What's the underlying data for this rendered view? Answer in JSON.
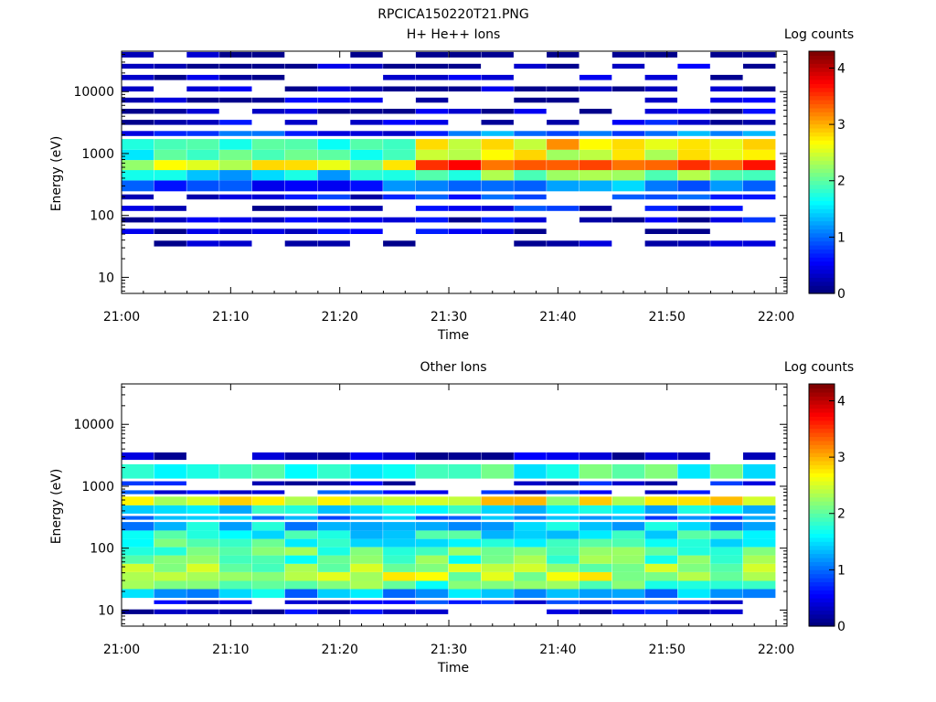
{
  "figure_title": "RPCICA150220T21.PNG",
  "chart_data": [
    {
      "type": "heatmap",
      "title": "H+ He++ Ions",
      "xlabel": "Time",
      "ylabel": "Energy (eV)",
      "x_ticks": [
        "21:00",
        "21:10",
        "21:20",
        "21:30",
        "21:40",
        "21:50",
        "22:00"
      ],
      "y_tick_labels": [
        "10",
        "100",
        "1000",
        "10000"
      ],
      "y_scale": "log",
      "ylim": [
        5.5,
        45000
      ],
      "colorbar": {
        "label": "Log counts",
        "ticks": [
          "0",
          "1",
          "2",
          "3",
          "4"
        ],
        "range": [
          0,
          4.3
        ],
        "colormap": "jet"
      },
      "time_start": "21:00",
      "time_end": "22:01",
      "columns_time": [
        "21:01.5",
        "21:04.5",
        "21:07.5",
        "21:10.5",
        "21:13.5",
        "21:16.5",
        "21:19.5",
        "21:22.5",
        "21:25.5",
        "21:28.5",
        "21:31.5",
        "21:34.5",
        "21:37.5",
        "21:40.5",
        "21:43.5",
        "21:46.5",
        "21:49.5",
        "21:52.5",
        "21:55.5",
        "21:58.5"
      ],
      "energy_bands_eV": [
        36,
        55,
        85,
        130,
        200,
        300,
        450,
        650,
        950,
        1400,
        2100,
        3200,
        4800,
        7300,
        11000,
        17000,
        26000,
        38000
      ],
      "log_counts_profile": [
        0.2,
        0.3,
        0.4,
        0.5,
        0.7,
        1.2,
        2.0,
        3.5,
        2.6,
        2.8,
        1.0,
        0.4,
        0.3,
        0.3,
        0.2,
        0.2,
        0.2,
        0.2
      ]
    },
    {
      "type": "heatmap",
      "title": "Other Ions",
      "xlabel": "Time",
      "ylabel": "Energy (eV)",
      "x_ticks": [
        "21:00",
        "21:10",
        "21:20",
        "21:30",
        "21:40",
        "21:50",
        "22:00"
      ],
      "y_tick_labels": [
        "10",
        "100",
        "1000",
        "10000"
      ],
      "y_scale": "log",
      "ylim": [
        5.5,
        45000
      ],
      "colorbar": {
        "label": "Log counts",
        "ticks": [
          "0",
          "1",
          "2",
          "3",
          "4"
        ],
        "range": [
          0,
          4.3
        ],
        "colormap": "jet"
      },
      "time_start": "21:00",
      "time_end": "22:01",
      "columns_time": [
        "21:01.5",
        "21:04.5",
        "21:07.5",
        "21:10.5",
        "21:13.5",
        "21:16.5",
        "21:19.5",
        "21:22.5",
        "21:25.5",
        "21:28.5",
        "21:31.5",
        "21:34.5",
        "21:37.5",
        "21:40.5",
        "21:43.5",
        "21:46.5",
        "21:49.5",
        "21:52.5",
        "21:55.5",
        "21:58.5"
      ],
      "energy_bands_eV": [
        10,
        13,
        19,
        25,
        35,
        48,
        65,
        90,
        120,
        165,
        225,
        310,
        420,
        580,
        800,
        1100,
        1600,
        3200
      ],
      "log_counts_profile": [
        0.3,
        0.6,
        1.3,
        2.0,
        2.4,
        2.2,
        2.0,
        2.0,
        1.8,
        1.6,
        1.4,
        1.1,
        1.5,
        2.6,
        0.6,
        0.4,
        1.8,
        0.2
      ]
    }
  ]
}
